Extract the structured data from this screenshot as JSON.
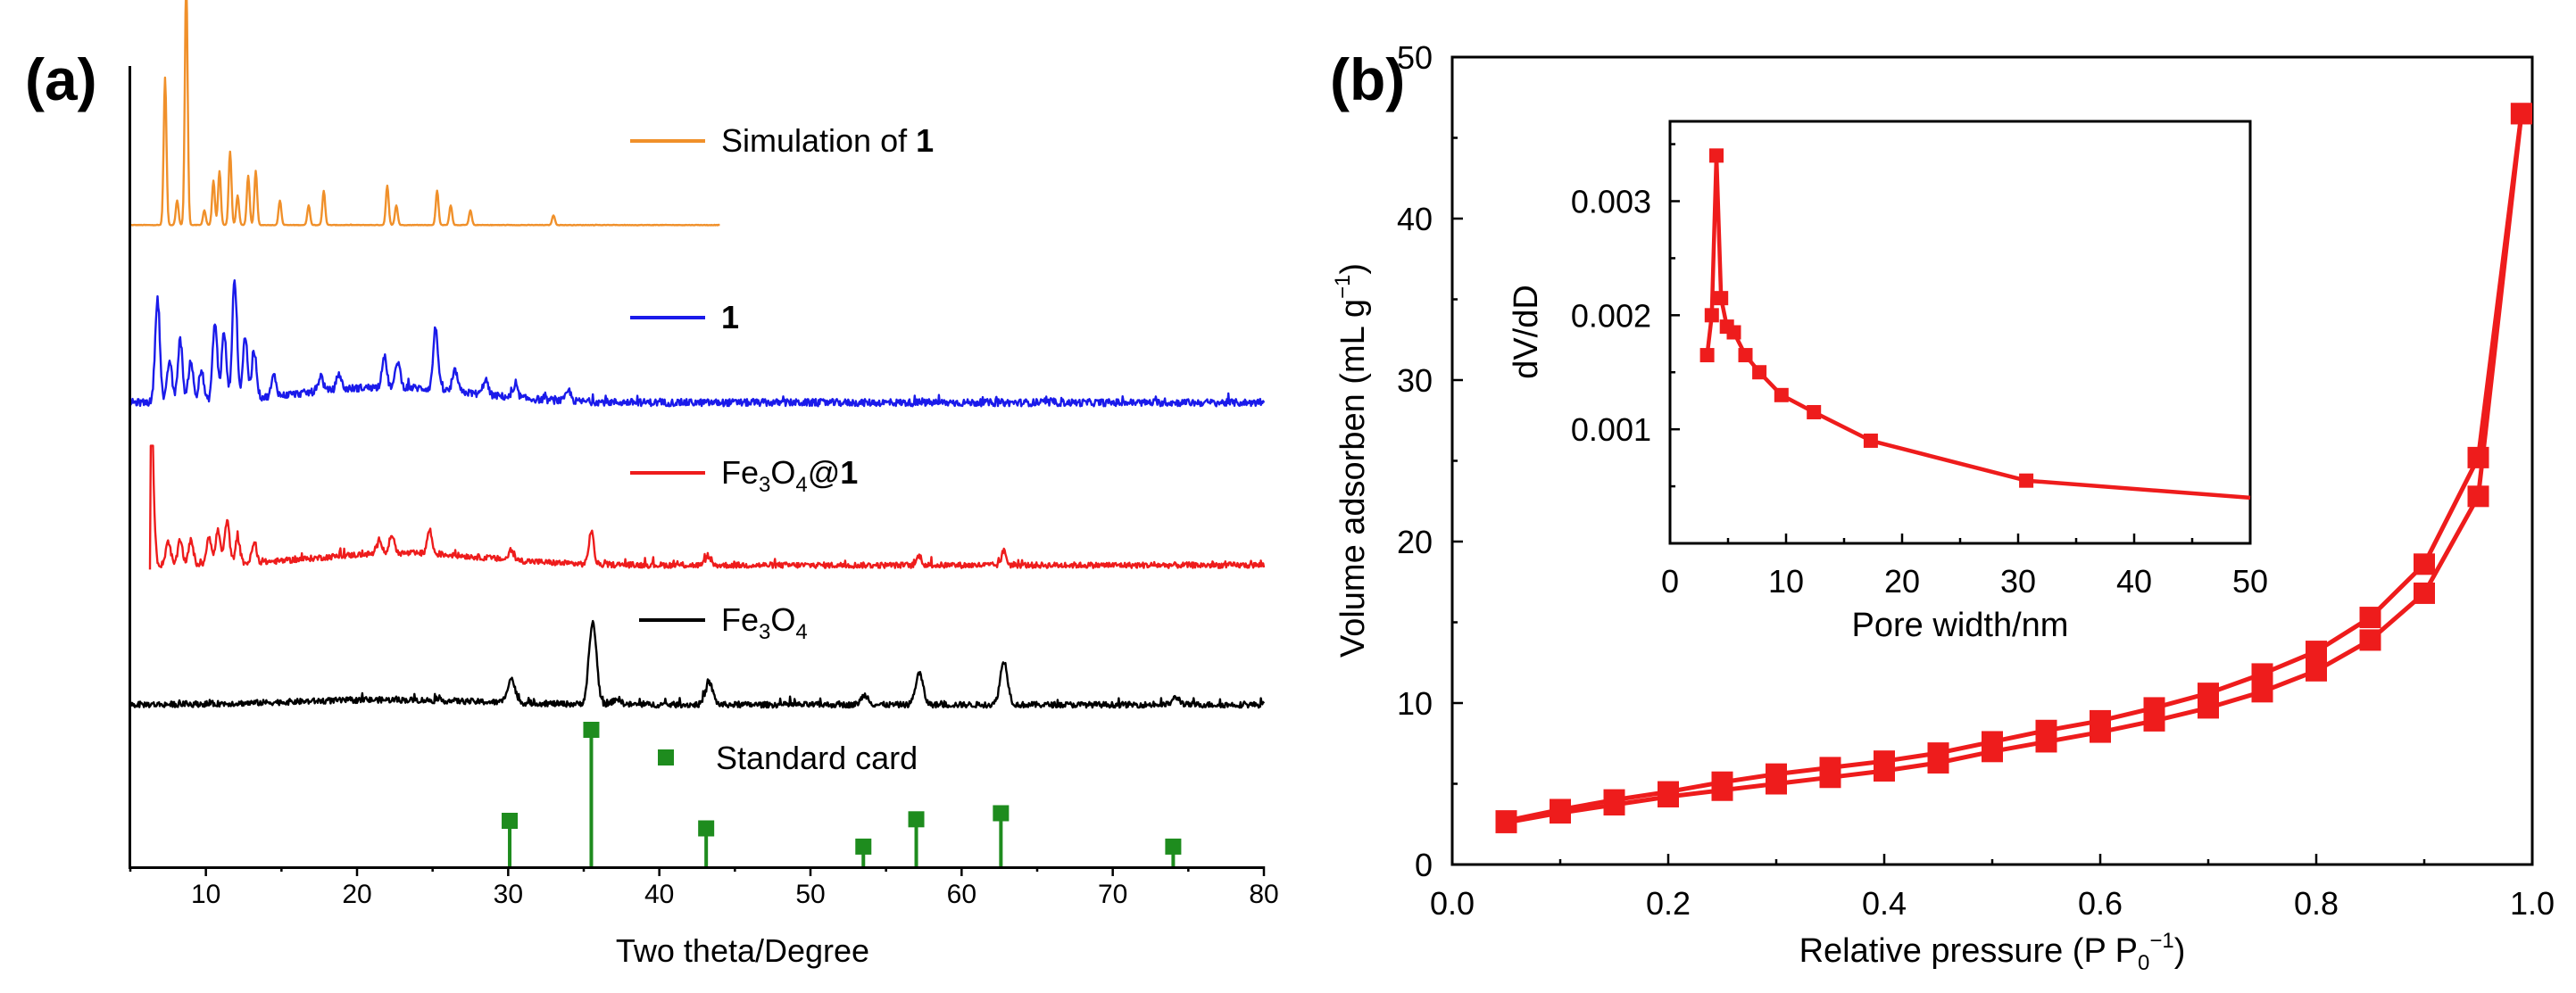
{
  "chart_data": [
    {
      "panel_label": "(a)",
      "type": "line",
      "xlabel": "Two theta/Degree",
      "ylabel": "",
      "xlim": [
        5,
        80
      ],
      "xticks": [
        10,
        20,
        30,
        40,
        50,
        60,
        70,
        80
      ],
      "grid": false,
      "series": [
        {
          "name": "Simulation of 1",
          "legend_main": "Simulation of ",
          "legend_bold": "1",
          "color": "#f0902a",
          "x_range": [
            5,
            44
          ],
          "baseline": 0.5,
          "noise": 0.04,
          "peaks": [
            [
              7.3,
              30
            ],
            [
              8.1,
              5
            ],
            [
              8.7,
              50
            ],
            [
              9.9,
              3
            ],
            [
              10.5,
              9
            ],
            [
              10.9,
              11
            ],
            [
              11.6,
              15
            ],
            [
              12.1,
              6
            ],
            [
              12.8,
              10
            ],
            [
              13.3,
              11
            ],
            [
              14.9,
              5
            ],
            [
              16.8,
              4
            ],
            [
              17.8,
              7
            ],
            [
              22.0,
              8
            ],
            [
              22.6,
              4
            ],
            [
              25.3,
              7
            ],
            [
              26.2,
              4
            ],
            [
              27.5,
              3
            ],
            [
              33.0,
              2
            ]
          ],
          "peak_width": 0.13
        },
        {
          "name": "1",
          "legend_main": "",
          "legend_bold": "1",
          "color": "#1a1aea",
          "x_range": [
            5,
            80
          ],
          "baseline": 1.5,
          "noise": 0.7,
          "peaks": [
            [
              6.8,
              20
            ],
            [
              7.6,
              8
            ],
            [
              8.3,
              12
            ],
            [
              9.0,
              8
            ],
            [
              9.7,
              6
            ],
            [
              10.6,
              15
            ],
            [
              11.2,
              13
            ],
            [
              11.9,
              23
            ],
            [
              12.6,
              12
            ],
            [
              13.2,
              9
            ],
            [
              14.5,
              4
            ],
            [
              17.6,
              3
            ],
            [
              18.8,
              3
            ],
            [
              21.8,
              6
            ],
            [
              22.7,
              5
            ],
            [
              25.2,
              12
            ],
            [
              26.5,
              4
            ],
            [
              28.5,
              3
            ],
            [
              30.5,
              2
            ],
            [
              34.0,
              2
            ]
          ],
          "peak_width": 0.22,
          "hump": [
            22,
            8,
            3
          ]
        },
        {
          "name": "Fe3O4@1",
          "legend_main": "Fe",
          "legend_sub1": "3",
          "legend_mid": "O",
          "legend_sub2": "4",
          "legend_end": "@",
          "legend_bold": "1",
          "color": "#ee1c1c",
          "x_range": [
            6.3,
            80
          ],
          "baseline": 1.2,
          "noise": 0.6,
          "peaks": [
            [
              6.4,
              26
            ],
            [
              7.5,
              5
            ],
            [
              8.3,
              5
            ],
            [
              9.0,
              5
            ],
            [
              10.2,
              6
            ],
            [
              10.8,
              7
            ],
            [
              11.4,
              9
            ],
            [
              12.1,
              5
            ],
            [
              13.2,
              4
            ],
            [
              21.5,
              3
            ],
            [
              22.3,
              4
            ],
            [
              24.8,
              5
            ],
            [
              30.2,
              2
            ],
            [
              35.5,
              7
            ],
            [
              43.2,
              2
            ],
            [
              57.2,
              2
            ],
            [
              62.8,
              3
            ]
          ],
          "peak_width": 0.22,
          "hump": [
            23,
            8,
            2.5
          ]
        },
        {
          "name": "Fe3O4",
          "legend_main": "Fe",
          "legend_sub1": "3",
          "legend_mid": "O",
          "legend_end": "",
          "legend_sub2": "4",
          "legend_bold": "",
          "color": "#000000",
          "x_range": [
            5,
            80
          ],
          "baseline": 1.5,
          "noise": 0.6,
          "peaks": [
            [
              30.2,
              5
            ],
            [
              35.6,
              17
            ],
            [
              37.2,
              1.2
            ],
            [
              43.3,
              4.5
            ],
            [
              53.6,
              2
            ],
            [
              57.2,
              6.5
            ],
            [
              62.8,
              9
            ],
            [
              74.2,
              1.5
            ]
          ],
          "peak_width": 0.35,
          "hump": [
            22,
            9,
            1
          ]
        }
      ],
      "standard_card": {
        "name": "Standard card",
        "color": "#1e8c1e",
        "peaks": [
          [
            30.1,
            30
          ],
          [
            35.5,
            90
          ],
          [
            43.1,
            25
          ],
          [
            53.5,
            13
          ],
          [
            57.0,
            31
          ],
          [
            62.6,
            35
          ],
          [
            74.0,
            13
          ]
        ]
      }
    },
    {
      "panel_label": "(b)",
      "type": "line",
      "xlabel": "Relative pressure (P P",
      "xlabel_sub": "0",
      "xlabel_sup": "−1",
      "xlabel_end": ")",
      "ylabel": "Volume adsorben (mL g",
      "ylabel_sup": "−1",
      "ylabel_end": ")",
      "xlim": [
        0.0,
        1.0
      ],
      "ylim": [
        0,
        50
      ],
      "xticks": [
        "0.0",
        "0.2",
        "0.4",
        "0.6",
        "0.8",
        "1.0"
      ],
      "yticks": [
        "0",
        "10",
        "20",
        "30",
        "40",
        "50"
      ],
      "grid": false,
      "color": "#ee1c1c",
      "series": [
        {
          "name": "adsorption",
          "x": [
            0.05,
            0.1,
            0.15,
            0.2,
            0.25,
            0.3,
            0.35,
            0.4,
            0.45,
            0.5,
            0.55,
            0.6,
            0.65,
            0.7,
            0.75,
            0.8,
            0.85,
            0.9,
            0.95,
            0.99
          ],
          "y": [
            2.6,
            3.2,
            3.7,
            4.2,
            4.6,
            5.0,
            5.4,
            5.8,
            6.3,
            7.0,
            7.6,
            8.2,
            8.9,
            9.7,
            10.7,
            12.0,
            13.9,
            16.8,
            22.8,
            46.5
          ]
        },
        {
          "name": "desorption",
          "x": [
            0.05,
            0.1,
            0.15,
            0.2,
            0.25,
            0.3,
            0.35,
            0.4,
            0.45,
            0.5,
            0.55,
            0.6,
            0.65,
            0.7,
            0.75,
            0.8,
            0.85,
            0.9,
            0.95,
            0.99
          ],
          "y": [
            2.7,
            3.4,
            4.0,
            4.5,
            5.1,
            5.6,
            6.0,
            6.4,
            6.9,
            7.6,
            8.3,
            8.9,
            9.7,
            10.6,
            11.8,
            13.2,
            15.3,
            18.6,
            25.2,
            46.5
          ]
        }
      ],
      "inset": {
        "type": "line",
        "xlabel": "Pore width/nm",
        "ylabel": "dV/dD",
        "xlim": [
          0,
          50
        ],
        "ylim": [
          0,
          0.0037
        ],
        "xticks": [
          "0",
          "10",
          "20",
          "30",
          "40",
          "50"
        ],
        "yticks": [
          "0.001",
          "0.002",
          "0.003"
        ],
        "ytick_values": [
          0.001,
          0.002,
          0.003
        ],
        "color": "#ee1c1c",
        "x": [
          3.2,
          3.6,
          4.0,
          4.4,
          4.9,
          5.5,
          6.5,
          7.7,
          9.6,
          12.4,
          17.3,
          30.7,
          50
        ],
        "y": [
          0.00165,
          0.002,
          0.0034,
          0.00215,
          0.0019,
          0.00185,
          0.00165,
          0.0015,
          0.0013,
          0.00115,
          0.0009,
          0.00055,
          0.0004
        ],
        "markers": [
          true,
          true,
          true,
          true,
          true,
          true,
          true,
          true,
          true,
          true,
          true,
          true,
          false
        ]
      }
    }
  ]
}
